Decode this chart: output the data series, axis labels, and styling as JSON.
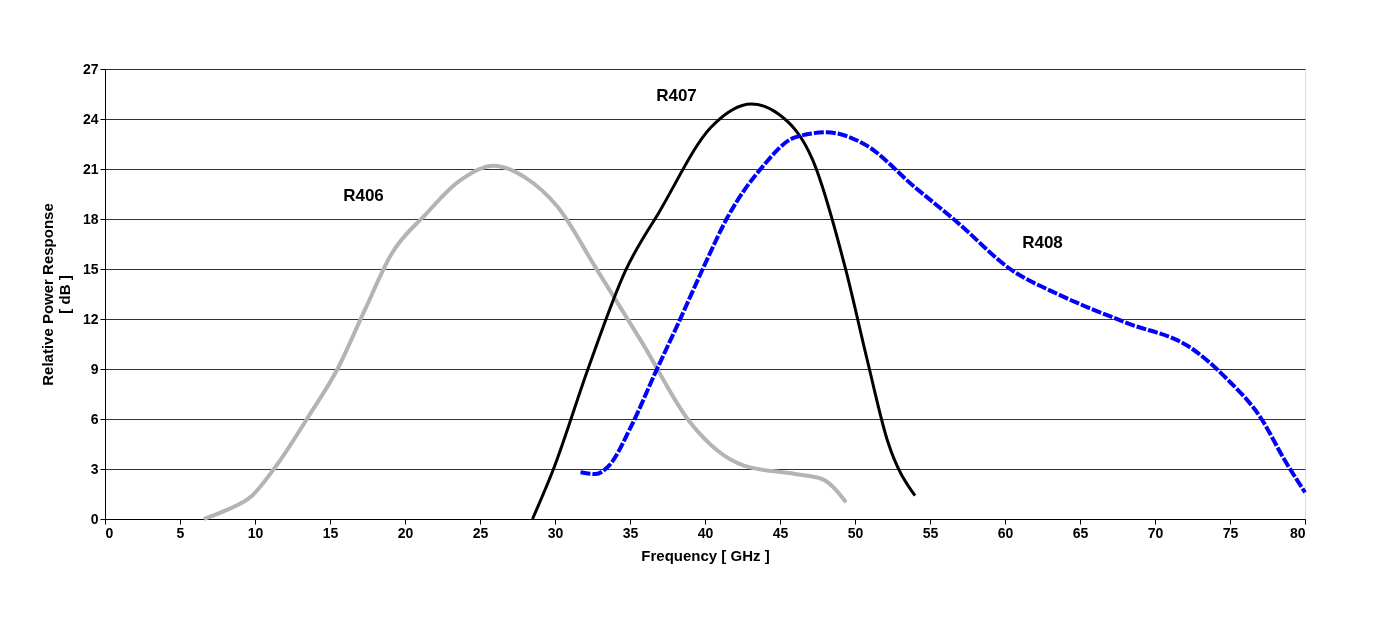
{
  "chart_data": {
    "type": "line",
    "xlabel": "Frequency [ GHz ]",
    "ylabel": "Relative Power Response\n[ dB ]",
    "xlim": [
      0,
      80
    ],
    "xticks": [
      0,
      5,
      10,
      15,
      20,
      25,
      30,
      35,
      40,
      45,
      50,
      55,
      60,
      65,
      70,
      75,
      80
    ],
    "ylim": [
      0,
      27
    ],
    "yticks": [
      0,
      3,
      6,
      9,
      12,
      15,
      18,
      21,
      24,
      27
    ],
    "grid": "y",
    "legend": false,
    "marker": "none",
    "series": [
      {
        "name": "R406",
        "color": "#b4b4b4",
        "line_style": "solid",
        "x": [
          6.6,
          8.0,
          9.8,
          11.5,
          13.6,
          15.5,
          17.3,
          19.1,
          21.4,
          23.5,
          25.9,
          28.0,
          30.2,
          32.7,
          35.8,
          39.0,
          42.6,
          46.0,
          47.8,
          49.4
        ],
        "values": [
          0,
          0.5,
          1.4,
          3.3,
          6.2,
          9.0,
          12.5,
          15.9,
          18.3,
          20.2,
          21.2,
          20.5,
          18.7,
          15.1,
          10.6,
          5.8,
          3.2,
          2.7,
          2.4,
          1.0
        ]
      },
      {
        "name": "R407",
        "color": "#000000",
        "line_style": "solid",
        "x": [
          28.5,
          29.9,
          32.2,
          34.7,
          37.0,
          40.4,
          43.1,
          44.9,
          47.2,
          49.4,
          50.8,
          52.2,
          54.0
        ],
        "values": [
          0,
          3.0,
          9.0,
          14.9,
          18.5,
          23.5,
          24.9,
          24.3,
          21.5,
          14.9,
          9.6,
          4.6,
          1.4
        ]
      },
      {
        "name": "R408",
        "color": "#0000ff",
        "line_style": "dashed",
        "x": [
          31.7,
          32.7,
          33.6,
          35.1,
          36.7,
          38.3,
          39.9,
          41.5,
          43.8,
          46.0,
          48.1,
          50.6,
          54.0,
          56.7,
          60.5,
          63.5,
          68.0,
          72.5,
          74.8,
          77.1,
          78.6,
          80.0
        ],
        "values": [
          2.8,
          2.7,
          3.2,
          5.6,
          8.8,
          11.9,
          15.1,
          18.1,
          21.1,
          22.9,
          23.2,
          22.5,
          19.9,
          17.9,
          14.9,
          13.5,
          11.8,
          10.2,
          8.4,
          6.0,
          3.6,
          1.6
        ]
      }
    ]
  }
}
